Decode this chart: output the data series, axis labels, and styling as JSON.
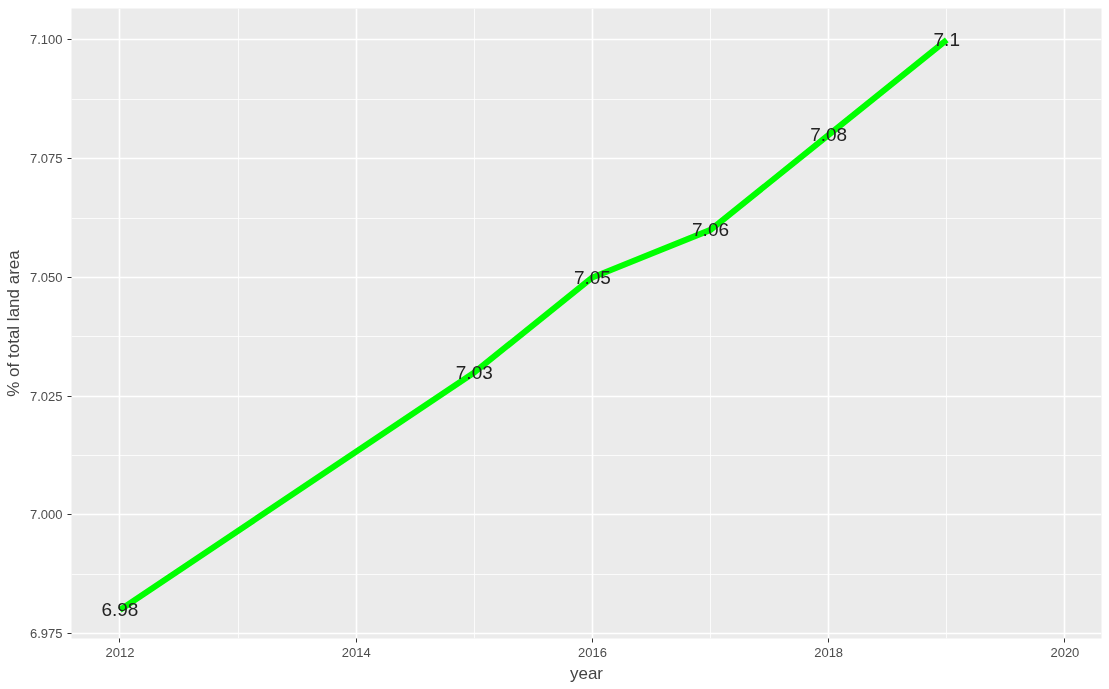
{
  "chart_data": {
    "type": "line",
    "xlabel": "year",
    "ylabel": "% of total land area",
    "x": [
      2012,
      2015,
      2016,
      2017,
      2018,
      2019
    ],
    "series": [
      {
        "color": "#00ff00",
        "values": [
          6.98,
          7.03,
          7.05,
          7.06,
          7.08,
          7.1
        ]
      }
    ],
    "xlim": [
      2011.59,
      2020.31
    ],
    "xticks": [
      2012,
      2014,
      2016,
      2018,
      2020
    ],
    "ylim": [
      6.974,
      7.1066
    ],
    "yticks": [
      {
        "value": 6.975,
        "label": "6.975"
      },
      {
        "value": 7.0,
        "label": "7.000"
      },
      {
        "value": 7.025,
        "label": "7.025"
      },
      {
        "value": 7.05,
        "label": "7.050"
      },
      {
        "value": 7.075,
        "label": "7.075"
      },
      {
        "value": 7.1,
        "label": "7.100"
      }
    ],
    "grid": true,
    "data_labels": true,
    "marker": "none",
    "line_style": "solid"
  }
}
